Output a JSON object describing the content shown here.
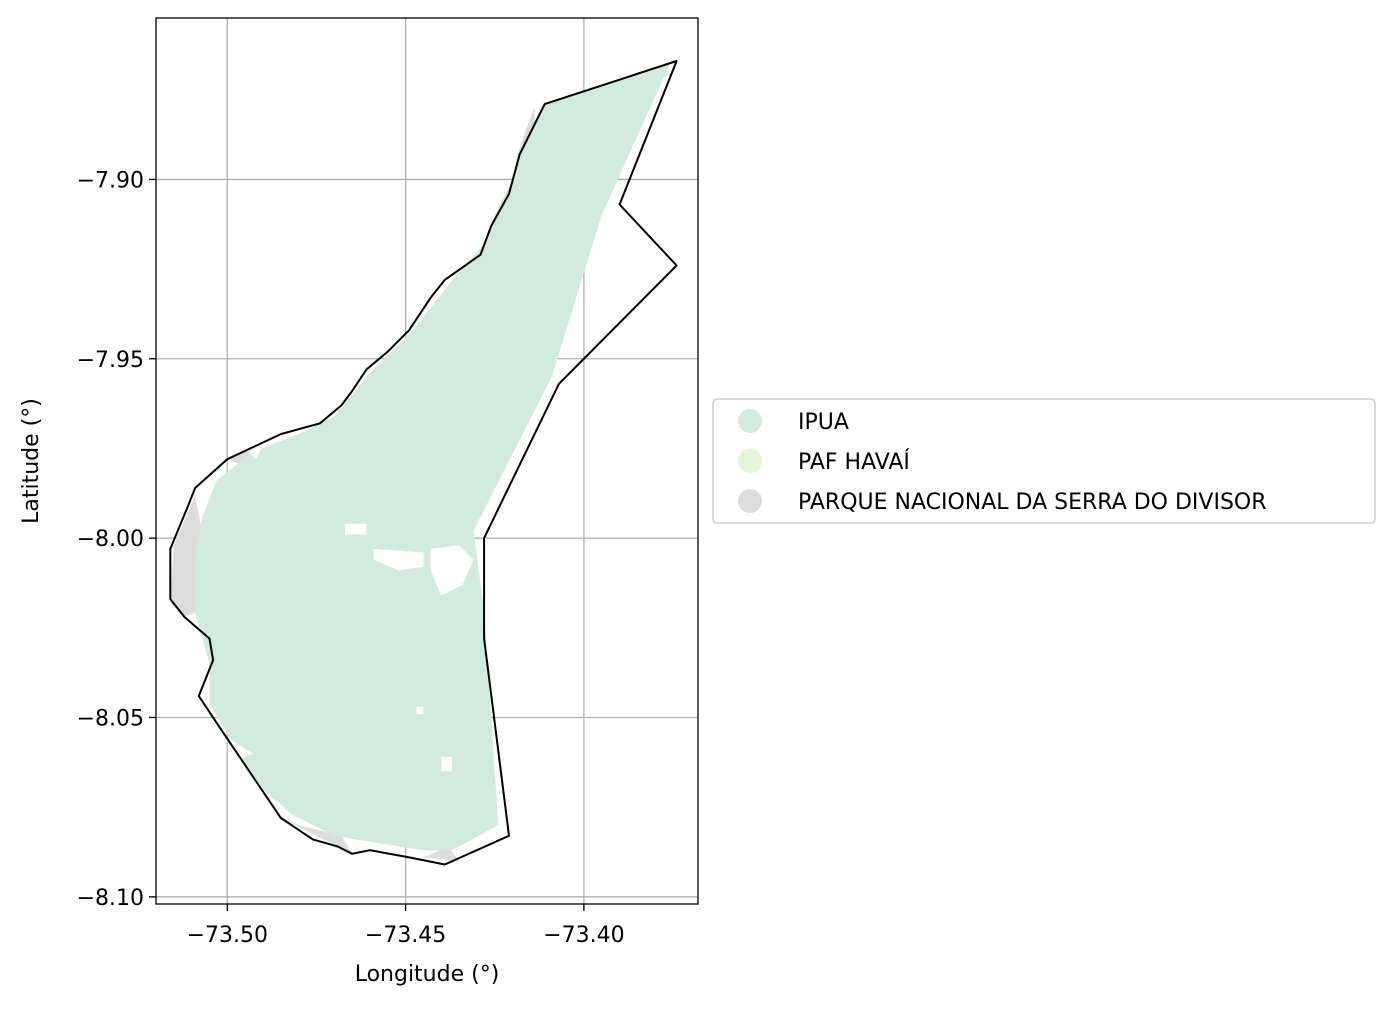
{
  "chart_data": {
    "type": "map",
    "xlabel": "Longitude (°)",
    "ylabel": "Latitude (°)",
    "xlim": [
      -73.52,
      -73.368
    ],
    "ylim": [
      -8.102,
      -7.855
    ],
    "xticks": [
      -73.5,
      -73.45,
      -73.4
    ],
    "xtick_labels": [
      "−73.50",
      "−73.45",
      "−73.40"
    ],
    "yticks": [
      -7.9,
      -7.95,
      -8.0,
      -8.05,
      -8.1
    ],
    "ytick_labels": [
      "−7.90",
      "−7.95",
      "−8.00",
      "−8.05",
      "−8.10"
    ],
    "grid": true,
    "legend_position": "right",
    "legend": [
      {
        "label": "IPUA",
        "color": "#d0ebdd"
      },
      {
        "label": "PAF HAVAÍ",
        "color": "#e6f5d5"
      },
      {
        "label": "PARQUE NACIONAL DA SERRA DO DIVISOR",
        "color": "#dcdcdc"
      }
    ],
    "boundary_outline": [
      [
        -73.374,
        -7.867
      ],
      [
        -73.411,
        -7.879
      ],
      [
        -73.415,
        -7.887
      ],
      [
        -73.418,
        -7.893
      ],
      [
        -73.421,
        -7.904
      ],
      [
        -73.426,
        -7.913
      ],
      [
        -73.429,
        -7.921
      ],
      [
        -73.439,
        -7.928
      ],
      [
        -73.443,
        -7.933
      ],
      [
        -73.449,
        -7.942
      ],
      [
        -73.455,
        -7.948
      ],
      [
        -73.461,
        -7.953
      ],
      [
        -73.465,
        -7.959
      ],
      [
        -73.468,
        -7.963
      ],
      [
        -73.474,
        -7.968
      ],
      [
        -73.485,
        -7.971
      ],
      [
        -73.5,
        -7.978
      ],
      [
        -73.509,
        -7.986
      ],
      [
        -73.511,
        -7.991
      ],
      [
        -73.516,
        -8.003
      ],
      [
        -73.516,
        -8.017
      ],
      [
        -73.512,
        -8.022
      ],
      [
        -73.505,
        -8.028
      ],
      [
        -73.504,
        -8.034
      ],
      [
        -73.508,
        -8.044
      ],
      [
        -73.502,
        -8.053
      ],
      [
        -73.485,
        -8.078
      ],
      [
        -73.476,
        -8.084
      ],
      [
        -73.469,
        -8.086
      ],
      [
        -73.465,
        -8.088
      ],
      [
        -73.46,
        -8.087
      ],
      [
        -73.449,
        -8.089
      ],
      [
        -73.439,
        -8.091
      ],
      [
        -73.421,
        -8.083
      ],
      [
        -73.428,
        -8.028
      ],
      [
        -73.428,
        -8.0
      ],
      [
        -73.407,
        -7.957
      ],
      [
        -73.374,
        -7.924
      ],
      [
        -73.39,
        -7.907
      ]
    ],
    "ipua_polygon": [
      [
        -73.376,
        -7.868
      ],
      [
        -73.411,
        -7.879
      ],
      [
        -73.414,
        -7.885
      ],
      [
        -73.418,
        -7.892
      ],
      [
        -73.42,
        -7.9
      ],
      [
        -73.425,
        -7.91
      ],
      [
        -73.428,
        -7.918
      ],
      [
        -73.436,
        -7.927
      ],
      [
        -73.44,
        -7.932
      ],
      [
        -73.448,
        -7.942
      ],
      [
        -73.454,
        -7.948
      ],
      [
        -73.46,
        -7.954
      ],
      [
        -73.465,
        -7.96
      ],
      [
        -73.47,
        -7.966
      ],
      [
        -73.48,
        -7.971
      ],
      [
        -73.493,
        -7.976
      ],
      [
        -73.503,
        -7.984
      ],
      [
        -73.507,
        -7.994
      ],
      [
        -73.509,
        -8.005
      ],
      [
        -73.509,
        -8.021
      ],
      [
        -73.505,
        -8.035
      ],
      [
        -73.505,
        -8.046
      ],
      [
        -73.498,
        -8.058
      ],
      [
        -73.49,
        -8.07
      ],
      [
        -73.482,
        -8.077
      ],
      [
        -73.47,
        -8.083
      ],
      [
        -73.458,
        -8.085
      ],
      [
        -73.445,
        -8.087
      ],
      [
        -73.437,
        -8.087
      ],
      [
        -73.424,
        -8.08
      ],
      [
        -73.428,
        -8.02
      ],
      [
        -73.431,
        -7.998
      ],
      [
        -73.409,
        -7.955
      ],
      [
        -73.395,
        -7.91
      ]
    ],
    "parque_patches": [
      [
        [
          -73.509,
          -7.988
        ],
        [
          -73.515,
          -8.002
        ],
        [
          -73.516,
          -8.018
        ],
        [
          -73.512,
          -8.022
        ],
        [
          -73.507,
          -8.02
        ],
        [
          -73.506,
          -8.004
        ]
      ],
      [
        [
          -73.414,
          -7.88
        ],
        [
          -73.419,
          -7.894
        ],
        [
          -73.413,
          -7.893
        ]
      ],
      [
        [
          -73.485,
          -8.078
        ],
        [
          -73.465,
          -8.088
        ],
        [
          -73.468,
          -8.083
        ],
        [
          -73.48,
          -8.08
        ]
      ],
      [
        [
          -73.445,
          -8.089
        ],
        [
          -73.435,
          -8.09
        ],
        [
          -73.438,
          -8.086
        ]
      ],
      [
        [
          -73.5,
          -7.978
        ],
        [
          -73.49,
          -7.974
        ],
        [
          -73.495,
          -7.98
        ]
      ]
    ],
    "holes": [
      [
        [
          -73.467,
          -7.996
        ],
        [
          -73.461,
          -7.996
        ],
        [
          -73.461,
          -7.999
        ],
        [
          -73.467,
          -7.999
        ]
      ],
      [
        [
          -73.459,
          -8.003
        ],
        [
          -73.445,
          -8.004
        ],
        [
          -73.445,
          -8.008
        ],
        [
          -73.452,
          -8.009
        ],
        [
          -73.459,
          -8.006
        ]
      ],
      [
        [
          -73.443,
          -8.003
        ],
        [
          -73.435,
          -8.002
        ],
        [
          -73.431,
          -8.006
        ],
        [
          -73.434,
          -8.013
        ],
        [
          -73.44,
          -8.016
        ],
        [
          -73.443,
          -8.009
        ]
      ],
      [
        [
          -73.447,
          -8.047
        ],
        [
          -73.445,
          -8.047
        ],
        [
          -73.445,
          -8.049
        ],
        [
          -73.447,
          -8.049
        ]
      ],
      [
        [
          -73.44,
          -8.061
        ],
        [
          -73.437,
          -8.061
        ],
        [
          -73.437,
          -8.065
        ],
        [
          -73.44,
          -8.065
        ]
      ],
      [
        [
          -73.494,
          -7.976
        ],
        [
          -73.49,
          -7.974
        ],
        [
          -73.492,
          -7.978
        ]
      ],
      [
        [
          -73.497,
          -8.062
        ],
        [
          -73.501,
          -8.055
        ],
        [
          -73.493,
          -8.06
        ]
      ]
    ]
  }
}
